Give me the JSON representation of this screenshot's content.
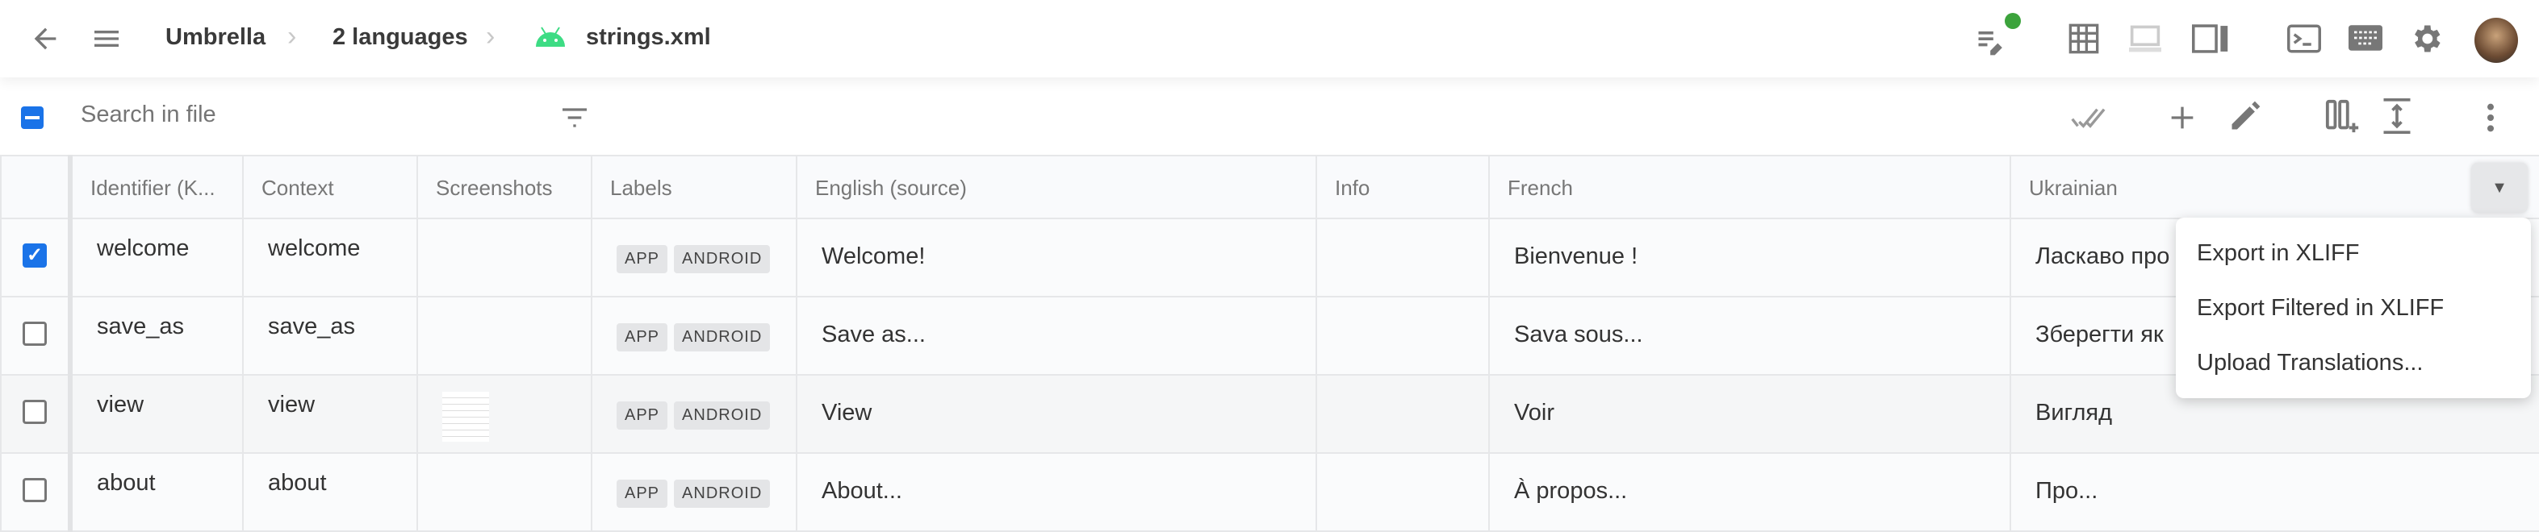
{
  "header": {
    "breadcrumb": [
      "Umbrella",
      "2 languages",
      "strings.xml"
    ],
    "separator": "›",
    "file_icon": "android-icon",
    "icons": [
      "back-arrow-icon",
      "menu-icon",
      "notes-edit-icon",
      "grid-icon",
      "laptop-icon",
      "side-panel-icon",
      "terminal-icon",
      "keyboard-icon",
      "gear-icon",
      "avatar"
    ],
    "notification_color": "#3ca33c"
  },
  "toolbar": {
    "search_placeholder": "Search in file",
    "icons": [
      "filter-icon",
      "double-check-icon",
      "add-icon",
      "edit-icon",
      "add-column-icon",
      "row-height-icon",
      "more-vert-icon"
    ]
  },
  "table": {
    "columns": [
      "Identifier (K...",
      "Context",
      "Screenshots",
      "Labels",
      "English (source)",
      "Info",
      "French",
      "Ukrainian"
    ],
    "rows": [
      {
        "checked": true,
        "id": "welcome",
        "context": "welcome",
        "labels": [
          "APP",
          "ANDROID"
        ],
        "english": "Welcome!",
        "french": "Bienvenue !",
        "ukrainian": "Ласкаво про"
      },
      {
        "checked": false,
        "id": "save_as",
        "context": "save_as",
        "labels": [
          "APP",
          "ANDROID"
        ],
        "english": "Save as...",
        "french": "Sava sous...",
        "ukrainian": "Зберегти як"
      },
      {
        "checked": false,
        "id": "view",
        "context": "view",
        "labels": [
          "APP",
          "ANDROID"
        ],
        "english": "View",
        "french": "Voir",
        "ukrainian": "Вигляд",
        "has_screenshot": true
      },
      {
        "checked": false,
        "id": "about",
        "context": "about",
        "labels": [
          "APP",
          "ANDROID"
        ],
        "english": "About...",
        "french": "À propos...",
        "ukrainian": "Про..."
      }
    ]
  },
  "menu": {
    "items": [
      "Export in XLIFF",
      "Export Filtered in XLIFF",
      "Upload Translations..."
    ]
  },
  "colors": {
    "accent": "#1a73e8",
    "android": "#3ddc84"
  }
}
